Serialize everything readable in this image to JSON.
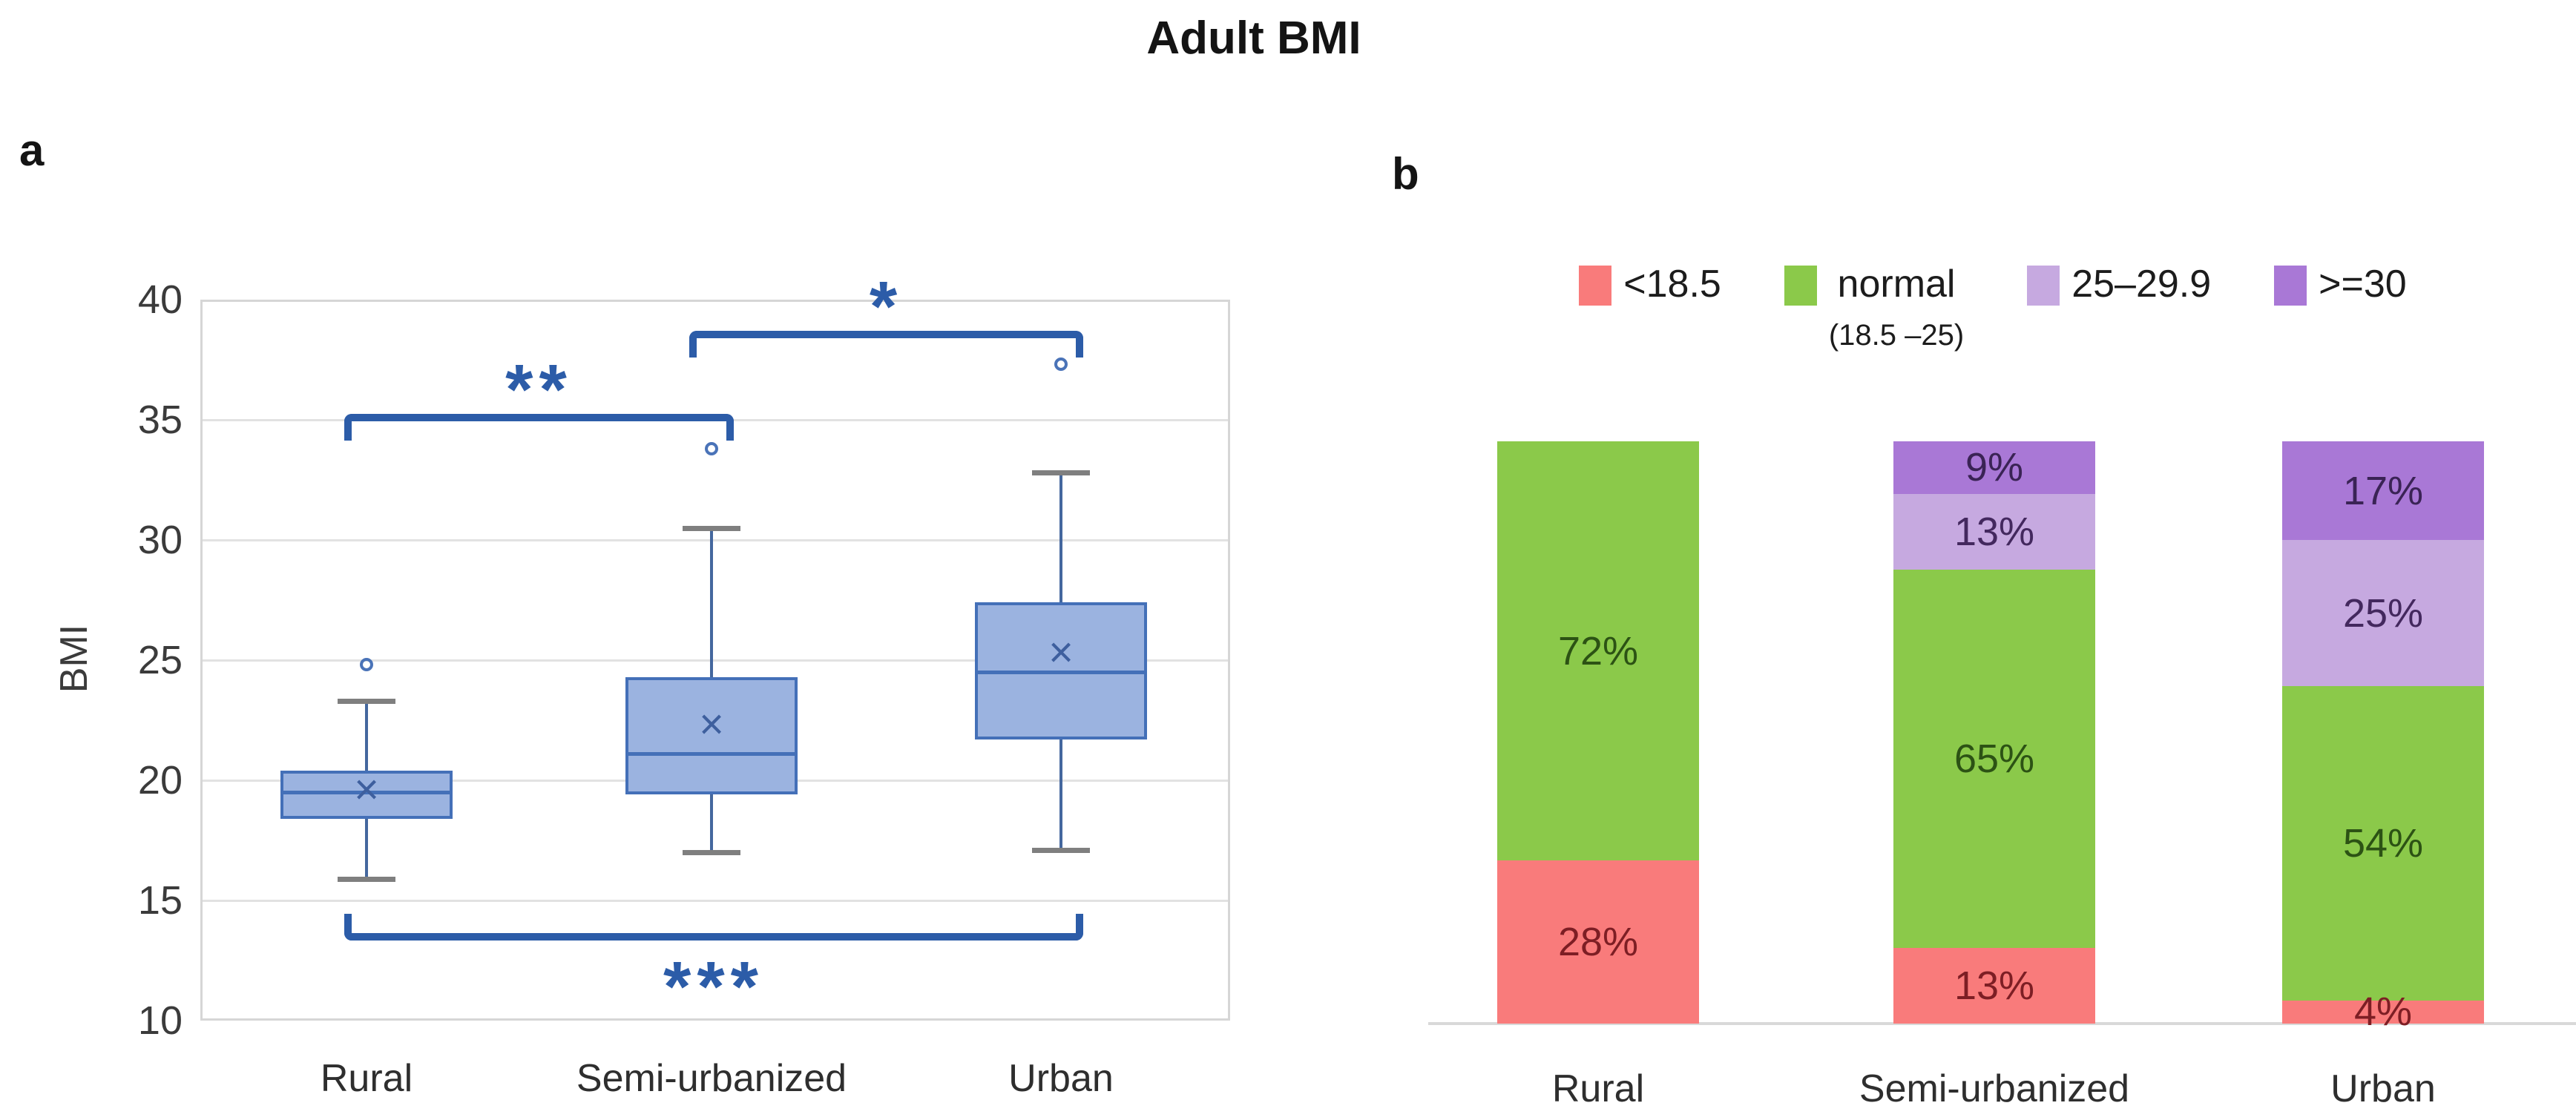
{
  "title": "Adult BMI",
  "panels": {
    "a": "a",
    "b": "b"
  },
  "colors": {
    "box_fill": "#9BB3E0",
    "box_border": "#4470B8",
    "whisker": "#44679E",
    "whisker_cap": "#7F7F7F",
    "mean_marker": "#3E5F9E",
    "outlier": "#4A73B8",
    "bracket": "#2C5CA8",
    "gridline": "#E2E2E2",
    "frame": "#D6D6D6",
    "axis_line": "#D9D9D9",
    "underweight": "#F97B7B",
    "normal": "#8BC94A",
    "overweight": "#C6A9E0",
    "obese": "#A978D6"
  },
  "legend": {
    "items": [
      {
        "label": "<18.5",
        "color": "#F97B7B"
      },
      {
        "label": "normal",
        "sublabel": "(18.5 –25)",
        "color": "#8BC94A"
      },
      {
        "label": "25–29.9",
        "color": "#C6A9E0"
      },
      {
        "label": ">=30",
        "color": "#A978D6"
      }
    ]
  },
  "chart_data": [
    {
      "type": "boxplot",
      "panel": "a",
      "title": "Adult BMI",
      "ylabel": "BMI",
      "ylim": [
        10,
        40
      ],
      "yticks": [
        10,
        15,
        20,
        25,
        30,
        35,
        40
      ],
      "grid": true,
      "categories": [
        "Rural",
        "Semi-urbanized",
        "Urban"
      ],
      "mean_marker": "×",
      "boxes": [
        {
          "category": "Rural",
          "whisker_low": 15.9,
          "q1": 18.4,
          "median": 19.5,
          "mean": 19.6,
          "q3": 20.4,
          "whisker_high": 23.3,
          "outliers": [
            24.8
          ]
        },
        {
          "category": "Semi-urbanized",
          "whisker_low": 17.0,
          "q1": 19.4,
          "median": 21.1,
          "mean": 22.3,
          "q3": 24.3,
          "whisker_high": 30.5,
          "outliers": [
            33.8
          ]
        },
        {
          "category": "Urban",
          "whisker_low": 17.1,
          "q1": 21.7,
          "median": 24.5,
          "mean": 25.3,
          "q3": 27.4,
          "whisker_high": 32.8,
          "outliers": [
            37.3
          ]
        }
      ],
      "significance": [
        {
          "between": [
            "Rural",
            "Semi-urbanized"
          ],
          "label": "**",
          "placement": "above"
        },
        {
          "between": [
            "Semi-urbanized",
            "Urban"
          ],
          "label": "*",
          "placement": "above"
        },
        {
          "between": [
            "Rural",
            "Urban"
          ],
          "label": "***",
          "placement": "below"
        }
      ]
    },
    {
      "type": "stacked-bar",
      "panel": "b",
      "unit": "percent",
      "ylim": [
        0,
        100
      ],
      "legend_position": "top",
      "categories": [
        "Rural",
        "Semi-urbanized",
        "Urban"
      ],
      "series": [
        {
          "name": "<18.5",
          "color": "#F97B7B",
          "label_color": "#7D1E24",
          "values": [
            28,
            13,
            4
          ]
        },
        {
          "name": "normal (18.5–25)",
          "color": "#8BC94A",
          "label_color": "#2C5214",
          "values": [
            72,
            65,
            54
          ]
        },
        {
          "name": "25–29.9",
          "color": "#C6A9E0",
          "label_color": "#43285E",
          "values": [
            0,
            13,
            25
          ]
        },
        {
          "name": ">=30",
          "color": "#A978D6",
          "label_color": "#3A2355",
          "values": [
            0,
            9,
            17
          ]
        }
      ]
    }
  ]
}
